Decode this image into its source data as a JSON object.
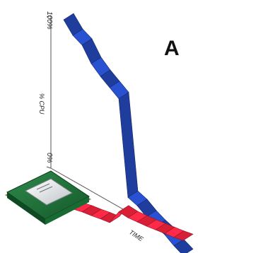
{
  "chart_data": {
    "type": "line",
    "title": "",
    "xlabel": "TIME",
    "ylabel": "% CPU",
    "ylim": [
      0,
      100
    ],
    "y_ticks": [
      "100%",
      "0%"
    ],
    "x": [
      0,
      1,
      2,
      3,
      4,
      5,
      6,
      7,
      8,
      9,
      10,
      11,
      12,
      13
    ],
    "series": [
      {
        "color": "#1e3d9c",
        "values": [
          100,
          94,
          92,
          84,
          80,
          77,
          74,
          12,
          11,
          8,
          6,
          5,
          2,
          0
        ]
      },
      {
        "color": "#d71f35",
        "values": [
          10,
          9,
          8,
          5,
          3,
          0,
          30,
          22,
          18,
          14,
          11,
          8,
          5,
          3
        ]
      }
    ],
    "annotation": {
      "text": "A"
    },
    "grid": false,
    "legend": "none",
    "icons": {
      "chip": "cpu-chip-icon"
    }
  }
}
